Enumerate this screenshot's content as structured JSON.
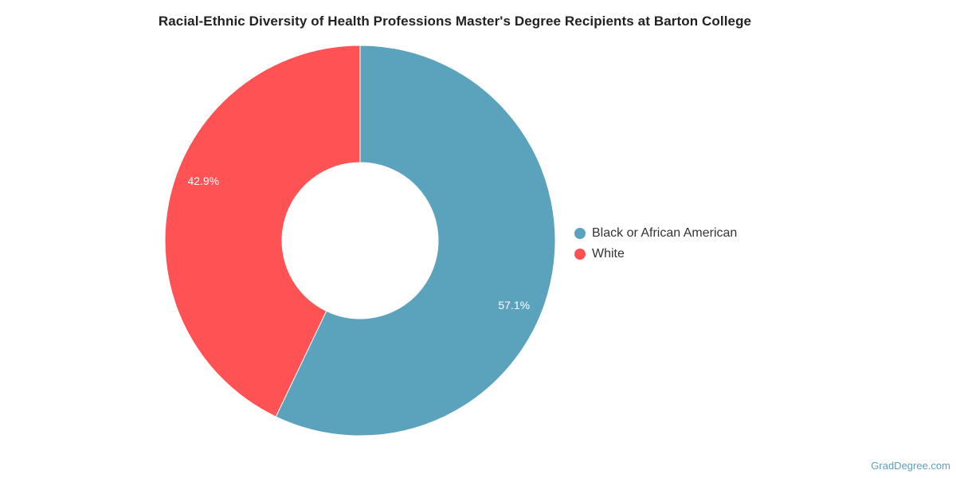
{
  "chart_data": {
    "type": "pie",
    "variant": "donut",
    "title": "Racial-Ethnic Diversity of Health Professions Master's Degree Recipients at Barton College",
    "categories": [
      "Black or African American",
      "White"
    ],
    "values": [
      57.1,
      42.9
    ],
    "labels": [
      "57.1%",
      "42.9%"
    ],
    "colors": [
      "#5ba2bd",
      "#fe5254"
    ],
    "start_angle_deg": 0,
    "direction": "clockwise",
    "legend_position": "right"
  },
  "credit": "GradDegree.com"
}
